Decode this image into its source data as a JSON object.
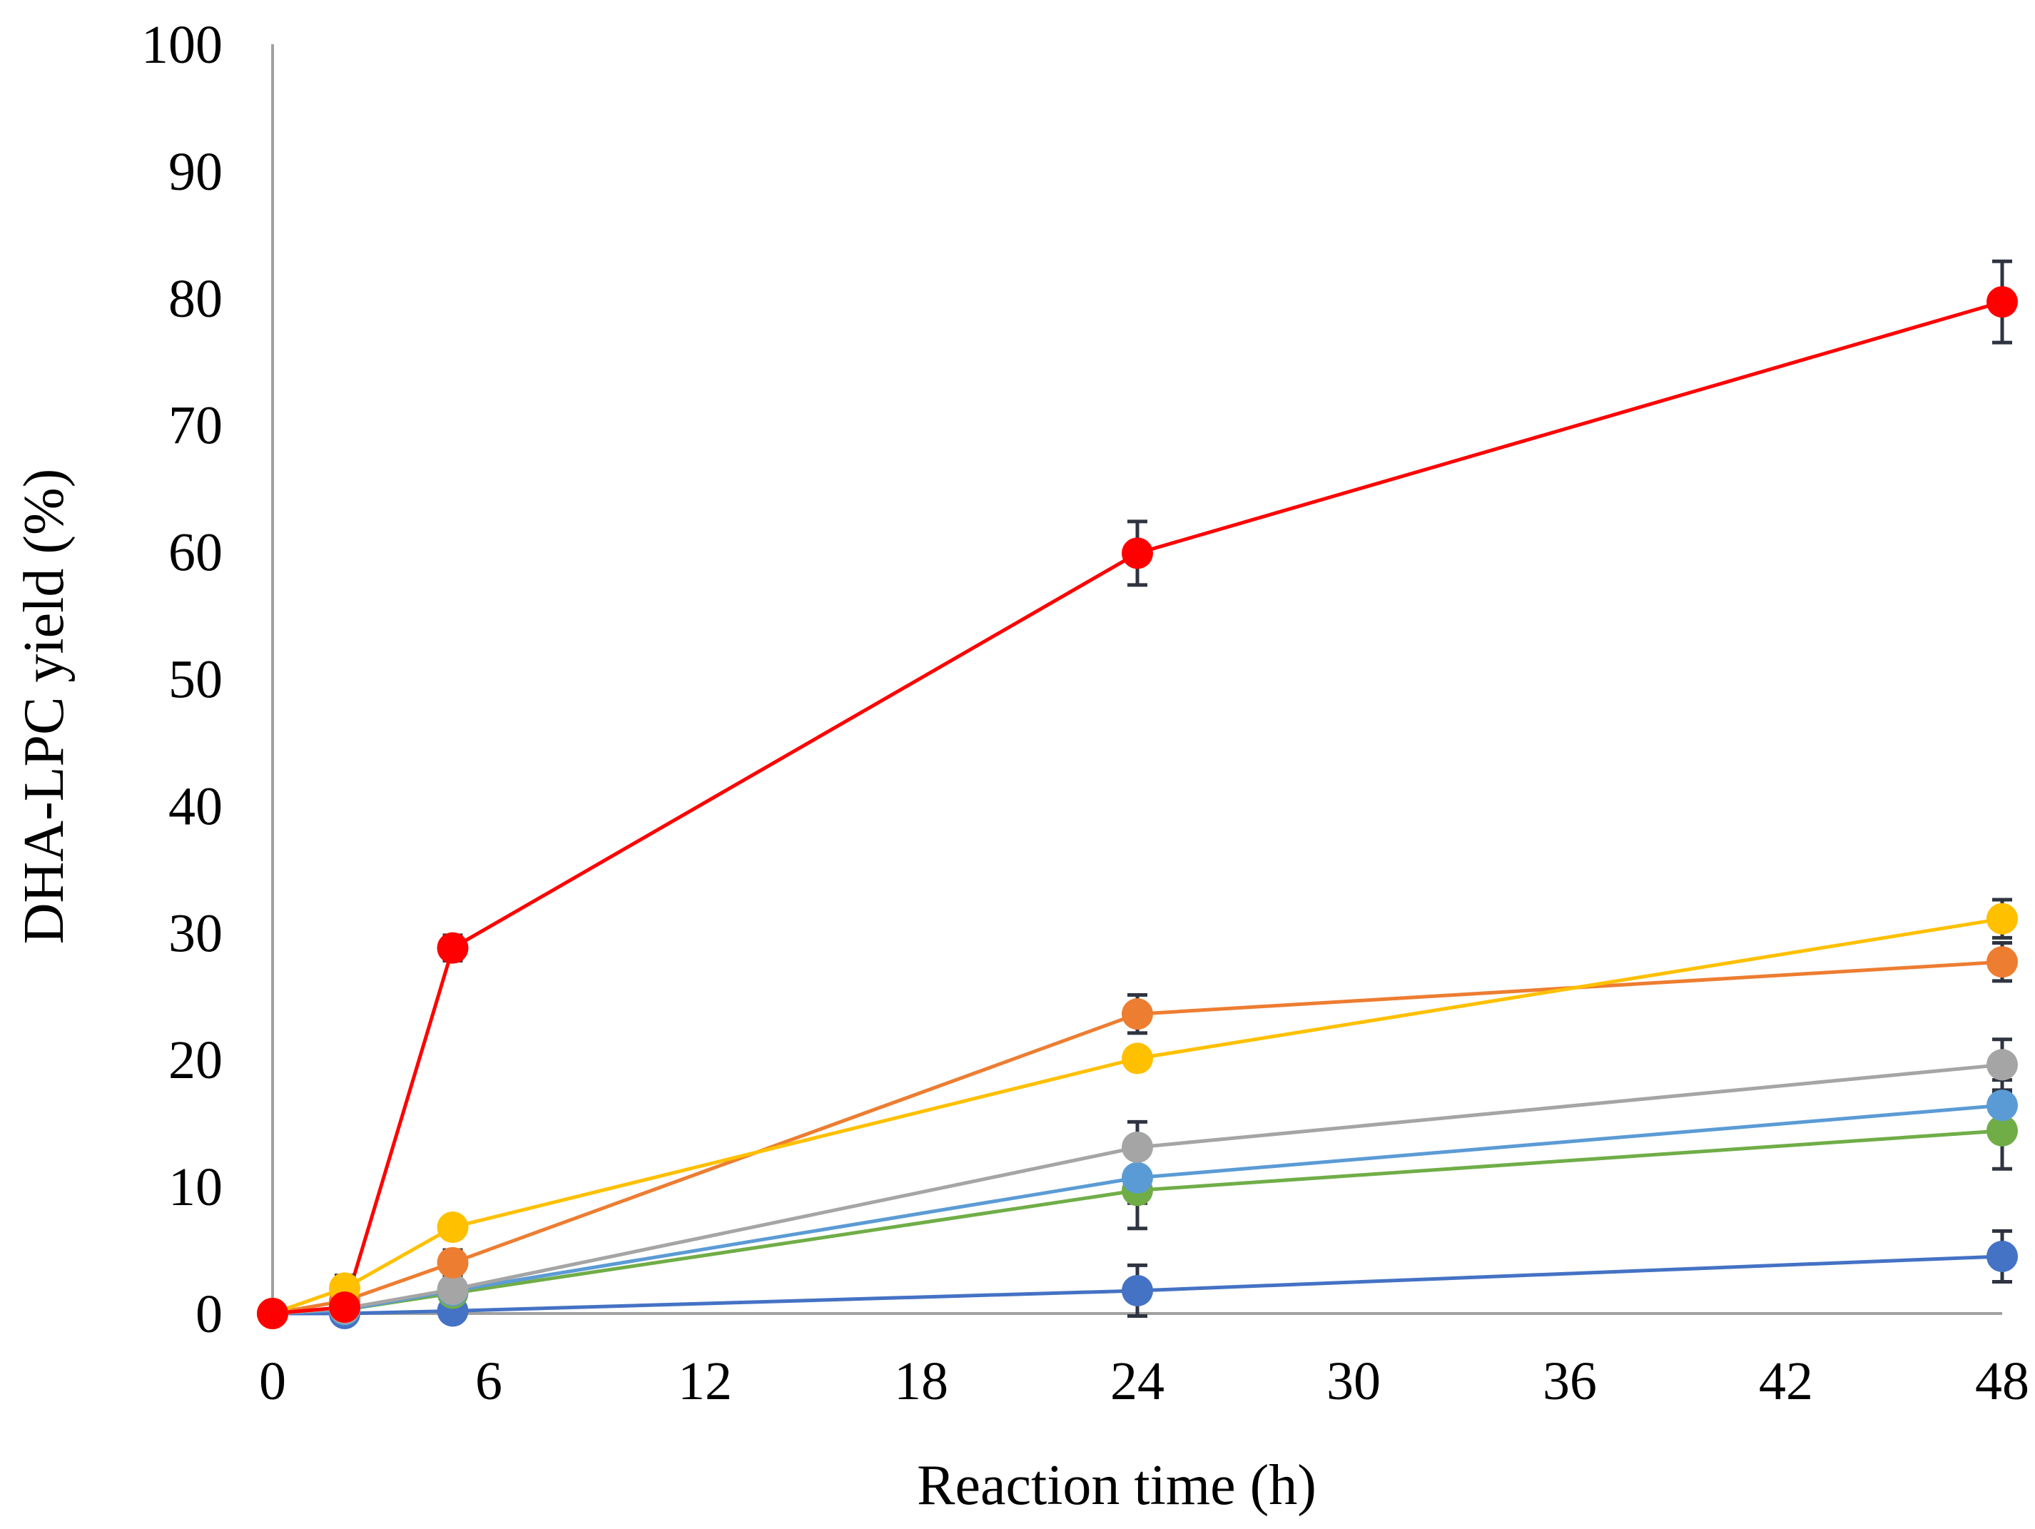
{
  "chart_data": {
    "type": "line",
    "title": "",
    "xlabel": "Reaction time (h)",
    "ylabel": "DHA-LPC yield (%)",
    "xlim": [
      0,
      48
    ],
    "ylim": [
      0,
      100
    ],
    "x_ticks": [
      0,
      6,
      12,
      18,
      24,
      30,
      36,
      42,
      48
    ],
    "y_ticks": [
      0,
      10,
      20,
      30,
      40,
      50,
      60,
      70,
      80,
      90,
      100
    ],
    "grid": false,
    "legend": "none",
    "series": [
      {
        "name": "series-dark-blue",
        "color": "#4472C4",
        "x": [
          0,
          2,
          5,
          24,
          48
        ],
        "values": [
          0,
          0,
          0.2,
          1.8,
          4.5
        ],
        "errors": [
          0,
          0,
          0.3,
          2.0,
          2.0
        ]
      },
      {
        "name": "series-green",
        "color": "#70AD47",
        "x": [
          0,
          2,
          5,
          24,
          48
        ],
        "values": [
          0,
          0.3,
          1.6,
          9.7,
          14.4
        ],
        "errors": [
          0,
          0.4,
          0.5,
          3.0,
          3.0
        ]
      },
      {
        "name": "series-light-blue",
        "color": "#5B9BD5",
        "x": [
          0,
          2,
          5,
          24,
          48
        ],
        "values": [
          0,
          0.3,
          1.8,
          10.7,
          16.4
        ],
        "errors": [
          0,
          0.4,
          0.5,
          2.0,
          2.0
        ]
      },
      {
        "name": "series-gray",
        "color": "#A5A5A5",
        "x": [
          0,
          2,
          5,
          24,
          48
        ],
        "values": [
          0,
          0.4,
          1.9,
          13.1,
          19.6
        ],
        "errors": [
          0,
          0.4,
          0.5,
          2.0,
          2.0
        ]
      },
      {
        "name": "series-orange",
        "color": "#ED7D31",
        "x": [
          0,
          2,
          5,
          24,
          48
        ],
        "values": [
          0,
          1.0,
          4.0,
          23.6,
          27.7
        ],
        "errors": [
          0,
          1.5,
          1.0,
          1.5,
          1.5
        ]
      },
      {
        "name": "series-yellow",
        "color": "#FFC000",
        "x": [
          0,
          2,
          5,
          24,
          48
        ],
        "values": [
          0,
          2.0,
          6.8,
          20.1,
          31.1
        ],
        "errors": [
          0,
          1.0,
          0.5,
          0.5,
          1.5
        ]
      },
      {
        "name": "series-red",
        "color": "#FF0000",
        "x": [
          0,
          2,
          5,
          24,
          48
        ],
        "values": [
          0,
          0.5,
          28.8,
          59.9,
          79.7
        ],
        "errors": [
          0,
          0.5,
          1.0,
          2.5,
          3.2
        ]
      }
    ]
  },
  "colors": {
    "axis": "#A0A0A0",
    "error_bar": "#2E3440",
    "background": "#FFFFFF"
  }
}
